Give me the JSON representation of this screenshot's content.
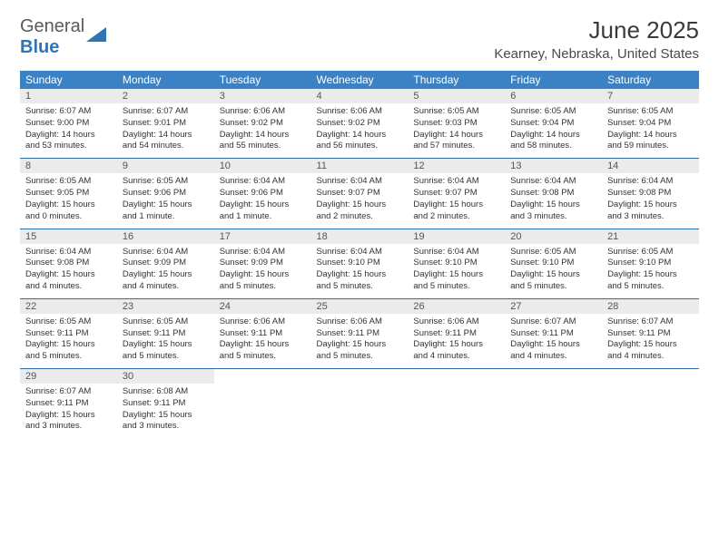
{
  "logo": {
    "text_gray": "General",
    "text_blue": "Blue"
  },
  "title": "June 2025",
  "location": "Kearney, Nebraska, United States",
  "colors": {
    "header_bg": "#3b82c4",
    "header_text": "#ffffff",
    "daynum_bg": "#ebebeb",
    "row_border": "#2e6da4",
    "logo_blue": "#2e75b6",
    "logo_gray": "#5a5a5a"
  },
  "weekdays": [
    "Sunday",
    "Monday",
    "Tuesday",
    "Wednesday",
    "Thursday",
    "Friday",
    "Saturday"
  ],
  "weeks": [
    [
      {
        "n": "1",
        "sr": "Sunrise: 6:07 AM",
        "ss": "Sunset: 9:00 PM",
        "dl": "Daylight: 14 hours and 53 minutes."
      },
      {
        "n": "2",
        "sr": "Sunrise: 6:07 AM",
        "ss": "Sunset: 9:01 PM",
        "dl": "Daylight: 14 hours and 54 minutes."
      },
      {
        "n": "3",
        "sr": "Sunrise: 6:06 AM",
        "ss": "Sunset: 9:02 PM",
        "dl": "Daylight: 14 hours and 55 minutes."
      },
      {
        "n": "4",
        "sr": "Sunrise: 6:06 AM",
        "ss": "Sunset: 9:02 PM",
        "dl": "Daylight: 14 hours and 56 minutes."
      },
      {
        "n": "5",
        "sr": "Sunrise: 6:05 AM",
        "ss": "Sunset: 9:03 PM",
        "dl": "Daylight: 14 hours and 57 minutes."
      },
      {
        "n": "6",
        "sr": "Sunrise: 6:05 AM",
        "ss": "Sunset: 9:04 PM",
        "dl": "Daylight: 14 hours and 58 minutes."
      },
      {
        "n": "7",
        "sr": "Sunrise: 6:05 AM",
        "ss": "Sunset: 9:04 PM",
        "dl": "Daylight: 14 hours and 59 minutes."
      }
    ],
    [
      {
        "n": "8",
        "sr": "Sunrise: 6:05 AM",
        "ss": "Sunset: 9:05 PM",
        "dl": "Daylight: 15 hours and 0 minutes."
      },
      {
        "n": "9",
        "sr": "Sunrise: 6:05 AM",
        "ss": "Sunset: 9:06 PM",
        "dl": "Daylight: 15 hours and 1 minute."
      },
      {
        "n": "10",
        "sr": "Sunrise: 6:04 AM",
        "ss": "Sunset: 9:06 PM",
        "dl": "Daylight: 15 hours and 1 minute."
      },
      {
        "n": "11",
        "sr": "Sunrise: 6:04 AM",
        "ss": "Sunset: 9:07 PM",
        "dl": "Daylight: 15 hours and 2 minutes."
      },
      {
        "n": "12",
        "sr": "Sunrise: 6:04 AM",
        "ss": "Sunset: 9:07 PM",
        "dl": "Daylight: 15 hours and 2 minutes."
      },
      {
        "n": "13",
        "sr": "Sunrise: 6:04 AM",
        "ss": "Sunset: 9:08 PM",
        "dl": "Daylight: 15 hours and 3 minutes."
      },
      {
        "n": "14",
        "sr": "Sunrise: 6:04 AM",
        "ss": "Sunset: 9:08 PM",
        "dl": "Daylight: 15 hours and 3 minutes."
      }
    ],
    [
      {
        "n": "15",
        "sr": "Sunrise: 6:04 AM",
        "ss": "Sunset: 9:08 PM",
        "dl": "Daylight: 15 hours and 4 minutes."
      },
      {
        "n": "16",
        "sr": "Sunrise: 6:04 AM",
        "ss": "Sunset: 9:09 PM",
        "dl": "Daylight: 15 hours and 4 minutes."
      },
      {
        "n": "17",
        "sr": "Sunrise: 6:04 AM",
        "ss": "Sunset: 9:09 PM",
        "dl": "Daylight: 15 hours and 5 minutes."
      },
      {
        "n": "18",
        "sr": "Sunrise: 6:04 AM",
        "ss": "Sunset: 9:10 PM",
        "dl": "Daylight: 15 hours and 5 minutes."
      },
      {
        "n": "19",
        "sr": "Sunrise: 6:04 AM",
        "ss": "Sunset: 9:10 PM",
        "dl": "Daylight: 15 hours and 5 minutes."
      },
      {
        "n": "20",
        "sr": "Sunrise: 6:05 AM",
        "ss": "Sunset: 9:10 PM",
        "dl": "Daylight: 15 hours and 5 minutes."
      },
      {
        "n": "21",
        "sr": "Sunrise: 6:05 AM",
        "ss": "Sunset: 9:10 PM",
        "dl": "Daylight: 15 hours and 5 minutes."
      }
    ],
    [
      {
        "n": "22",
        "sr": "Sunrise: 6:05 AM",
        "ss": "Sunset: 9:11 PM",
        "dl": "Daylight: 15 hours and 5 minutes."
      },
      {
        "n": "23",
        "sr": "Sunrise: 6:05 AM",
        "ss": "Sunset: 9:11 PM",
        "dl": "Daylight: 15 hours and 5 minutes."
      },
      {
        "n": "24",
        "sr": "Sunrise: 6:06 AM",
        "ss": "Sunset: 9:11 PM",
        "dl": "Daylight: 15 hours and 5 minutes."
      },
      {
        "n": "25",
        "sr": "Sunrise: 6:06 AM",
        "ss": "Sunset: 9:11 PM",
        "dl": "Daylight: 15 hours and 5 minutes."
      },
      {
        "n": "26",
        "sr": "Sunrise: 6:06 AM",
        "ss": "Sunset: 9:11 PM",
        "dl": "Daylight: 15 hours and 4 minutes."
      },
      {
        "n": "27",
        "sr": "Sunrise: 6:07 AM",
        "ss": "Sunset: 9:11 PM",
        "dl": "Daylight: 15 hours and 4 minutes."
      },
      {
        "n": "28",
        "sr": "Sunrise: 6:07 AM",
        "ss": "Sunset: 9:11 PM",
        "dl": "Daylight: 15 hours and 4 minutes."
      }
    ],
    [
      {
        "n": "29",
        "sr": "Sunrise: 6:07 AM",
        "ss": "Sunset: 9:11 PM",
        "dl": "Daylight: 15 hours and 3 minutes."
      },
      {
        "n": "30",
        "sr": "Sunrise: 6:08 AM",
        "ss": "Sunset: 9:11 PM",
        "dl": "Daylight: 15 hours and 3 minutes."
      },
      null,
      null,
      null,
      null,
      null
    ]
  ]
}
